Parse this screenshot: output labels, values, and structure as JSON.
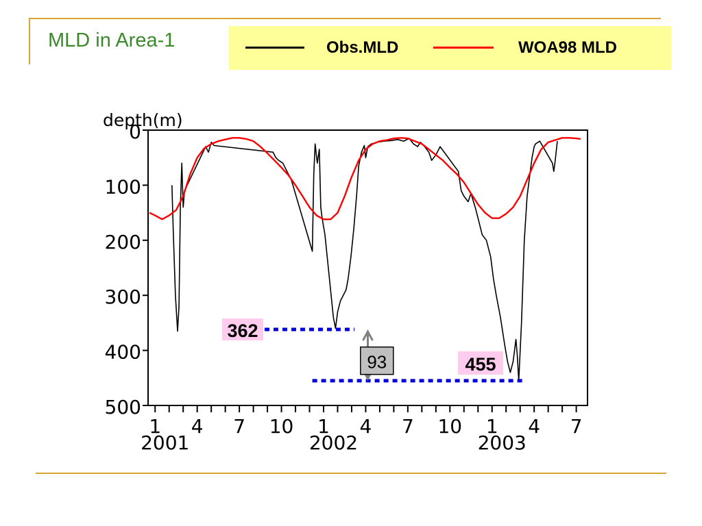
{
  "slide": {
    "title": "MLD in Area-1"
  },
  "chart_data": {
    "type": "line",
    "ylabel": "depth(m)",
    "y_inverted": true,
    "ylim": [
      0,
      500
    ],
    "yticks": [
      0,
      100,
      200,
      300,
      400,
      500
    ],
    "xlim": [
      0.5,
      31.8
    ],
    "x_unit": "month index (1 = Jan 2001)",
    "xticks": [
      {
        "x": 1,
        "label": "1"
      },
      {
        "x": 4,
        "label": "4"
      },
      {
        "x": 7,
        "label": "7"
      },
      {
        "x": 10,
        "label": "10"
      },
      {
        "x": 13,
        "label": "1"
      },
      {
        "x": 16,
        "label": "4"
      },
      {
        "x": 19,
        "label": "7"
      },
      {
        "x": 22,
        "label": "10"
      },
      {
        "x": 25,
        "label": "1"
      },
      {
        "x": 28,
        "label": "4"
      },
      {
        "x": 31,
        "label": "7"
      }
    ],
    "year_labels": [
      {
        "x": 2,
        "label": "2001"
      },
      {
        "x": 14,
        "label": "2002"
      },
      {
        "x": 26,
        "label": "2003"
      }
    ],
    "legend_position": "top",
    "series": [
      {
        "name": "Obs.MLD",
        "color": "#000000",
        "points": [
          [
            2.2,
            100
          ],
          [
            2.3,
            190
          ],
          [
            2.45,
            300
          ],
          [
            2.6,
            365
          ],
          [
            2.7,
            320
          ],
          [
            2.8,
            140
          ],
          [
            2.9,
            60
          ],
          [
            3.0,
            140
          ],
          [
            3.1,
            110
          ],
          [
            4.6,
            30
          ],
          [
            4.8,
            40
          ],
          [
            5.0,
            22
          ],
          [
            5.2,
            28
          ],
          [
            9.4,
            40
          ],
          [
            9.6,
            50
          ],
          [
            9.8,
            55
          ],
          [
            10.1,
            60
          ],
          [
            10.4,
            75
          ],
          [
            10.7,
            90
          ],
          [
            12.2,
            220
          ],
          [
            12.3,
            80
          ],
          [
            12.4,
            25
          ],
          [
            12.55,
            60
          ],
          [
            12.7,
            35
          ],
          [
            12.8,
            140
          ],
          [
            12.9,
            160
          ],
          [
            13.1,
            190
          ],
          [
            13.3,
            240
          ],
          [
            13.5,
            290
          ],
          [
            13.7,
            340
          ],
          [
            13.85,
            360
          ],
          [
            14.0,
            330
          ],
          [
            14.2,
            310
          ],
          [
            14.4,
            300
          ],
          [
            14.6,
            290
          ],
          [
            14.75,
            270
          ],
          [
            14.95,
            230
          ],
          [
            15.15,
            180
          ],
          [
            15.35,
            120
          ],
          [
            15.5,
            65
          ],
          [
            15.7,
            40
          ],
          [
            15.9,
            28
          ],
          [
            16.0,
            50
          ],
          [
            16.15,
            30
          ],
          [
            16.4,
            25
          ],
          [
            16.8,
            22
          ],
          [
            17.3,
            20
          ],
          [
            17.8,
            19
          ],
          [
            18.3,
            17
          ],
          [
            18.7,
            20
          ],
          [
            19.1,
            15
          ],
          [
            19.4,
            25
          ],
          [
            19.7,
            30
          ],
          [
            19.9,
            22
          ],
          [
            20.2,
            30
          ],
          [
            20.5,
            40
          ],
          [
            20.7,
            55
          ],
          [
            21.0,
            45
          ],
          [
            21.3,
            30
          ],
          [
            22.6,
            75
          ],
          [
            22.8,
            110
          ],
          [
            23.0,
            120
          ],
          [
            23.3,
            130
          ],
          [
            23.5,
            115
          ],
          [
            23.8,
            140
          ],
          [
            24.0,
            160
          ],
          [
            24.3,
            190
          ],
          [
            24.6,
            200
          ],
          [
            24.9,
            230
          ],
          [
            25.1,
            270
          ],
          [
            25.3,
            300
          ],
          [
            25.6,
            340
          ],
          [
            25.9,
            390
          ],
          [
            26.1,
            420
          ],
          [
            26.3,
            440
          ],
          [
            26.5,
            420
          ],
          [
            26.7,
            380
          ],
          [
            26.8,
            410
          ],
          [
            26.9,
            455
          ],
          [
            27.1,
            350
          ],
          [
            27.3,
            200
          ],
          [
            27.5,
            120
          ],
          [
            27.7,
            80
          ],
          [
            27.85,
            50
          ],
          [
            28.0,
            30
          ],
          [
            28.1,
            25
          ],
          [
            28.4,
            20
          ],
          [
            29.3,
            60
          ],
          [
            29.4,
            75
          ],
          [
            29.5,
            55
          ],
          [
            29.65,
            20
          ]
        ]
      },
      {
        "name": "WOA98 MLD",
        "color": "#ff0000",
        "points": [
          [
            0.6,
            150
          ],
          [
            1.0,
            155
          ],
          [
            1.5,
            162
          ],
          [
            2.0,
            155
          ],
          [
            2.5,
            145
          ],
          [
            3.0,
            120
          ],
          [
            3.5,
            80
          ],
          [
            4.0,
            50
          ],
          [
            4.5,
            33
          ],
          [
            5.0,
            25
          ],
          [
            5.5,
            20
          ],
          [
            6.0,
            17
          ],
          [
            6.5,
            14
          ],
          [
            7.0,
            14
          ],
          [
            7.5,
            16
          ],
          [
            8.0,
            20
          ],
          [
            8.5,
            30
          ],
          [
            9.0,
            42
          ],
          [
            9.5,
            55
          ],
          [
            10.0,
            68
          ],
          [
            10.5,
            82
          ],
          [
            11.0,
            100
          ],
          [
            11.5,
            120
          ],
          [
            12.0,
            140
          ],
          [
            12.5,
            155
          ],
          [
            13.0,
            162
          ],
          [
            13.5,
            162
          ],
          [
            14.0,
            150
          ],
          [
            14.5,
            120
          ],
          [
            15.0,
            85
          ],
          [
            15.5,
            55
          ],
          [
            16.0,
            35
          ],
          [
            16.5,
            25
          ],
          [
            17.0,
            20
          ],
          [
            17.5,
            18
          ],
          [
            18.0,
            15
          ],
          [
            18.5,
            14
          ],
          [
            19.0,
            15
          ],
          [
            19.5,
            20
          ],
          [
            20.0,
            25
          ],
          [
            20.5,
            35
          ],
          [
            21.0,
            45
          ],
          [
            21.5,
            55
          ],
          [
            22.0,
            68
          ],
          [
            22.5,
            80
          ],
          [
            23.0,
            95
          ],
          [
            23.5,
            115
          ],
          [
            24.0,
            135
          ],
          [
            24.5,
            150
          ],
          [
            25.0,
            160
          ],
          [
            25.5,
            160
          ],
          [
            26.0,
            152
          ],
          [
            26.5,
            140
          ],
          [
            27.0,
            120
          ],
          [
            27.5,
            90
          ],
          [
            28.0,
            60
          ],
          [
            28.5,
            35
          ],
          [
            29.0,
            22
          ],
          [
            29.5,
            18
          ],
          [
            30.0,
            14
          ],
          [
            30.5,
            14
          ],
          [
            31.0,
            15
          ],
          [
            31.3,
            16
          ]
        ]
      }
    ],
    "annotations": [
      {
        "label": "362",
        "y": 362,
        "x_start": 8.8,
        "x_end": 15.2,
        "bg": "#ffccee"
      },
      {
        "label": "455",
        "y": 455,
        "x_start": 12.2,
        "x_end": 27.2,
        "bg": "#ffccee"
      },
      {
        "label": "93",
        "x_arrow": 16.15,
        "y_from": 362,
        "y_to": 455,
        "box_x": 16.8,
        "box_y": 420,
        "bg": "#c0c0c0"
      }
    ]
  }
}
